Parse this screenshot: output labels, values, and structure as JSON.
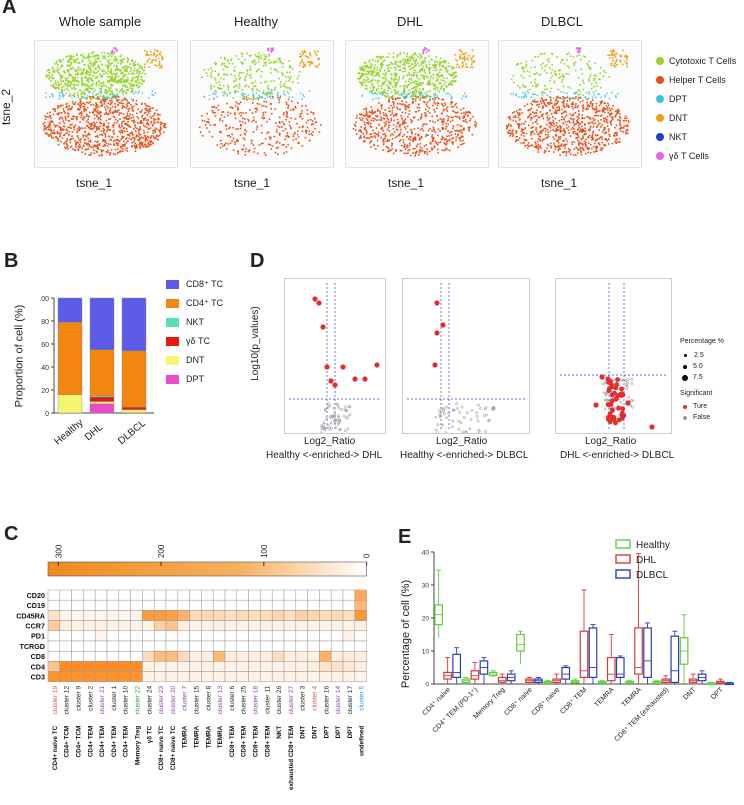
{
  "panels": {
    "A": "A",
    "B": "B",
    "C": "C",
    "D": "D",
    "E": "E"
  },
  "panelA": {
    "titles": [
      "Whole sample",
      "Healthy",
      "DHL",
      "DLBCL"
    ],
    "xlabel": "tsne_1",
    "ylabel": "tsne_2",
    "legend": [
      {
        "label": "Cytotoxic T Cells",
        "color": "#93d52b"
      },
      {
        "label": "Helper T Cells",
        "color": "#e8501c"
      },
      {
        "label": "DPT",
        "color": "#39c6e2"
      },
      {
        "label": "DNT",
        "color": "#eaa116"
      },
      {
        "label": "NKT",
        "color": "#1e3ed0"
      },
      {
        "label": "γδ T Cells",
        "color": "#ea62e8"
      }
    ]
  },
  "chart_data": [
    {
      "type": "bar",
      "stacked": true,
      "title": "",
      "ylabel": "Proportion of cell (%)",
      "ylim": [
        0,
        100
      ],
      "yticks": [
        "0",
        "20",
        "40",
        "60",
        "80",
        "100"
      ],
      "categories": [
        "Healthy",
        "DHL",
        "DLBCL"
      ],
      "series": [
        {
          "name": "DPT",
          "color": "#e84cc9",
          "values": [
            0,
            8,
            0
          ]
        },
        {
          "name": "DNT",
          "color": "#f6f570",
          "values": [
            16,
            2,
            3
          ]
        },
        {
          "name": "γδ TC",
          "color": "#e8180f",
          "values": [
            0,
            4,
            2
          ]
        },
        {
          "name": "NKT",
          "color": "#59e0b2",
          "values": [
            0,
            1,
            0
          ]
        },
        {
          "name": "CD4⁺ TC",
          "color": "#f3860f",
          "values": [
            63,
            40,
            49
          ]
        },
        {
          "name": "CD8⁺ TC",
          "color": "#5b5be8",
          "values": [
            21,
            45,
            46
          ]
        }
      ],
      "legend_order": [
        "CD8⁺ TC",
        "CD4⁺ TC",
        "NKT",
        "γδ TC",
        "DNT",
        "DPT"
      ]
    },
    {
      "type": "heatmap",
      "colorbar_ticks": [
        "300",
        "200",
        "100",
        "0"
      ],
      "rows": [
        "CD20",
        "CD19",
        "CD45RA",
        "CCR7",
        "PD1",
        "TCRGD",
        "CD8",
        "CD4",
        "CD3"
      ],
      "column_ids": [
        {
          "t": "cluster 19",
          "c": "#d9534f"
        },
        {
          "t": "cluster 12",
          "c": "#222"
        },
        {
          "t": "cluster 9",
          "c": "#222"
        },
        {
          "t": "cluster 2",
          "c": "#222"
        },
        {
          "t": "cluster 21",
          "c": "#8e44ad"
        },
        {
          "t": "cluster 1",
          "c": "#222"
        },
        {
          "t": "cluster 10",
          "c": "#222"
        },
        {
          "t": "cluster 22",
          "c": "#2e9e4a"
        },
        {
          "t": "cluster 24",
          "c": "#222"
        },
        {
          "t": "cluster 23",
          "c": "#8e44ad"
        },
        {
          "t": "cluster 20",
          "c": "#8e44ad"
        },
        {
          "t": "cluster 7",
          "c": "#8e44ad"
        },
        {
          "t": "cluster 15",
          "c": "#222"
        },
        {
          "t": "cluster 8",
          "c": "#222"
        },
        {
          "t": "cluster 13",
          "c": "#8e44ad"
        },
        {
          "t": "cluster 6",
          "c": "#222"
        },
        {
          "t": "cluster 25",
          "c": "#222"
        },
        {
          "t": "cluster 18",
          "c": "#8e44ad"
        },
        {
          "t": "cluster 11",
          "c": "#222"
        },
        {
          "t": "cluster 26",
          "c": "#222"
        },
        {
          "t": "cluster 27",
          "c": "#8e44ad"
        },
        {
          "t": "cluster 3",
          "c": "#222"
        },
        {
          "t": "cluster 4",
          "c": "#d9534f"
        },
        {
          "t": "cluster 16",
          "c": "#222"
        },
        {
          "t": "cluster 14",
          "c": "#8e44ad"
        },
        {
          "t": "cluster 17",
          "c": "#222"
        },
        {
          "t": "cluster 5",
          "c": "#3a8fd9"
        }
      ],
      "column_types": [
        "CD4+ naive TC",
        "CD4+ TCM",
        "CD4+ TCM",
        "CD4+ TEM",
        "CD4+ TEM",
        "CD4+ TEM",
        "CD4+ TEM",
        "Memory Treg",
        "γδ TC",
        "CD8+ naive TC",
        "CD8+ naive TC",
        "TEMRA",
        "TEMRA",
        "TEMRA",
        "TEMRA",
        "CD8+ TEM",
        "CD8+ TEM",
        "CD8+ TEM",
        "CD8+ TEM",
        "NKT",
        "exhausted CD8+ TEM",
        "DNT",
        "DNT",
        "DPT",
        "DPT",
        "DPT",
        "undefined"
      ],
      "values": [
        [
          0,
          0,
          0,
          0,
          0,
          0,
          0,
          0,
          0,
          0,
          0,
          0,
          0,
          0,
          0,
          0,
          0,
          0,
          0,
          0,
          0,
          0,
          0,
          0,
          0,
          0,
          220
        ],
        [
          0,
          0,
          0,
          0,
          0,
          0,
          0,
          0,
          0,
          0,
          0,
          0,
          0,
          0,
          0,
          0,
          0,
          0,
          0,
          0,
          0,
          0,
          0,
          0,
          0,
          0,
          180
        ],
        [
          70,
          25,
          25,
          25,
          25,
          25,
          25,
          25,
          250,
          250,
          240,
          200,
          90,
          100,
          95,
          80,
          95,
          80,
          90,
          110,
          80,
          120,
          110,
          90,
          95,
          80,
          260
        ],
        [
          130,
          45,
          35,
          35,
          35,
          30,
          30,
          30,
          30,
          120,
          150,
          40,
          30,
          30,
          40,
          30,
          30,
          30,
          35,
          30,
          30,
          30,
          30,
          30,
          30,
          30,
          40
        ],
        [
          0,
          0,
          0,
          0,
          25,
          0,
          0,
          0,
          0,
          0,
          0,
          0,
          0,
          0,
          0,
          0,
          0,
          0,
          0,
          0,
          0,
          0,
          0,
          0,
          0,
          30,
          0
        ],
        [
          0,
          0,
          0,
          0,
          0,
          0,
          0,
          0,
          0,
          0,
          0,
          0,
          0,
          0,
          0,
          0,
          0,
          0,
          0,
          0,
          0,
          0,
          0,
          0,
          0,
          0,
          0
        ],
        [
          0,
          0,
          0,
          0,
          0,
          0,
          0,
          0,
          90,
          170,
          170,
          90,
          40,
          40,
          180,
          40,
          40,
          40,
          45,
          90,
          40,
          40,
          35,
          200,
          40,
          50,
          40
        ],
        [
          150,
          290,
          290,
          290,
          290,
          290,
          290,
          290,
          30,
          30,
          30,
          30,
          30,
          30,
          30,
          30,
          30,
          30,
          30,
          30,
          30,
          30,
          45,
          70,
          70,
          55,
          40
        ],
        [
          270,
          270,
          270,
          270,
          270,
          270,
          270,
          270,
          30,
          30,
          30,
          30,
          30,
          30,
          30,
          30,
          30,
          30,
          30,
          30,
          30,
          30,
          30,
          30,
          30,
          30,
          30
        ]
      ]
    },
    {
      "type": "box",
      "ylabel": "Percentage of cell (%)",
      "ylim": [
        0,
        40
      ],
      "yticks": [
        "0",
        "10",
        "20",
        "30",
        "40"
      ],
      "categories": [
        "CD4⁺ naive",
        "CD4⁺ TEM (PD-1⁺)",
        "Memory Treg",
        "CD8⁺ naive",
        "CD8⁺ naive",
        "CD8⁺ TEM",
        "TEMRA",
        "TEMRA",
        "CD8⁺ TEM (exhausted)",
        "DNT",
        "DPT"
      ],
      "series": [
        {
          "name": "Healthy",
          "color": "#5bd13c",
          "boxes": [
            [
              14,
              18,
              21,
              24,
              34.5
            ],
            [
              0,
              0.5,
              1,
              1.5,
              2
            ],
            [
              2,
              2.5,
              3,
              3.5,
              4
            ],
            [
              6,
              10,
              12,
              15,
              16
            ],
            [
              0,
              0.2,
              0.5,
              0.8,
              1
            ],
            [
              0,
              0.3,
              0.6,
              1,
              1.5
            ],
            [
              0,
              0.2,
              0.5,
              0.8,
              1
            ],
            [
              0,
              0.2,
              0.5,
              0.8,
              1
            ],
            [
              0,
              0.2,
              0.5,
              0.8,
              1
            ],
            [
              0,
              6,
              10,
              14,
              21
            ],
            [
              0,
              0.1,
              0.2,
              0.3,
              0.5
            ]
          ]
        },
        {
          "name": "DHL",
          "color": "#d63b3b",
          "boxes": [
            [
              0,
              1.5,
              2.5,
              3.5,
              8
            ],
            [
              0,
              1.5,
              2.5,
              4,
              6.5
            ],
            [
              0,
              0.5,
              1,
              2,
              3
            ],
            [
              0,
              0.5,
              1,
              1.5,
              2
            ],
            [
              0,
              0.5,
              1,
              1.5,
              3
            ],
            [
              0,
              2,
              4,
              16,
              28.5
            ],
            [
              0,
              1,
              3,
              8,
              15
            ],
            [
              0,
              3,
              5,
              17,
              39.5
            ],
            [
              0,
              0.5,
              1,
              1.5,
              2.5
            ],
            [
              0,
              0.5,
              1,
              1.5,
              3
            ],
            [
              0,
              0.2,
              0.4,
              0.8,
              1.5
            ]
          ]
        },
        {
          "name": "DLBCL",
          "color": "#2a3fb5",
          "boxes": [
            [
              0,
              2,
              3.5,
              9,
              11
            ],
            [
              0,
              3,
              5,
              7,
              8
            ],
            [
              0,
              1,
              2,
              3,
              4
            ],
            [
              0,
              0.5,
              1,
              1.5,
              2
            ],
            [
              0,
              1.5,
              3,
              5,
              5.5
            ],
            [
              0,
              2,
              5,
              17,
              18
            ],
            [
              0,
              2,
              3,
              8,
              8.5
            ],
            [
              0,
              2,
              7,
              17,
              18.5
            ],
            [
              0,
              0.5,
              4,
              14.5,
              16
            ],
            [
              0,
              1,
              2,
              3,
              4
            ],
            [
              0,
              0.1,
              0.2,
              0.3,
              0.5
            ]
          ]
        }
      ]
    }
  ],
  "panelB": {
    "yticks": [
      "0",
      "20",
      "40",
      "60",
      "80",
      "100"
    ]
  },
  "panelD": {
    "ylabel": "Log10(p_values)",
    "xlabel": "Log2_Ratio",
    "subtitles": [
      "Healthy <-enriched-> DHL",
      "Healthy <-enriched-> DLBCL",
      "DHL <-enriched-> DLBCL"
    ],
    "legend": {
      "size_title": "Percentage %",
      "sizes": [
        "2.5",
        "5.0",
        "7.5"
      ],
      "sig_title": "Significant",
      "sig": [
        "Ture",
        "False"
      ]
    }
  }
}
